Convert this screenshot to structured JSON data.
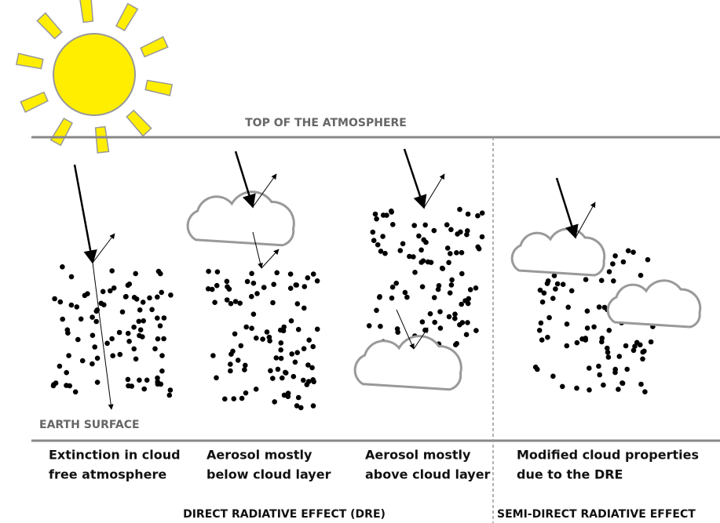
{
  "top_label": "TOP OF THE ATMOSPHERE",
  "bottom_label": "EARTH SURFACE",
  "panels": [
    {
      "caption": [
        "Extinction in cloud",
        "free atmosphere"
      ]
    },
    {
      "caption": [
        "Aerosol mostly",
        "below cloud layer"
      ]
    },
    {
      "caption": [
        "Aerosol mostly",
        "above cloud layer"
      ]
    },
    {
      "caption": [
        "Modified cloud properties",
        "due to the DRE"
      ]
    }
  ],
  "groups": [
    "DIRECT RADIATIVE EFFECT (DRE)",
    "SEMI-DIRECT RADIATIVE EFFECT"
  ]
}
